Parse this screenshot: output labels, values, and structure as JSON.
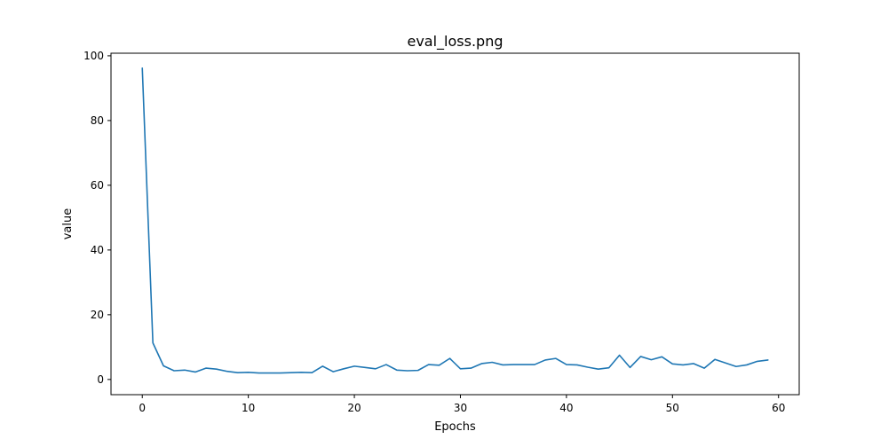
{
  "chart_data": {
    "type": "line",
    "title": "eval_loss.png",
    "xlabel": "Epochs",
    "ylabel": "value",
    "xlim": [
      -2.95,
      61.95
    ],
    "ylim": [
      -4.7,
      100.8
    ],
    "xticks": [
      0,
      10,
      20,
      30,
      40,
      50,
      60
    ],
    "yticks": [
      0,
      20,
      40,
      60,
      80,
      100
    ],
    "grid": false,
    "line_color": "#1f77b4",
    "series": [
      {
        "x": [
          0,
          1,
          2,
          3,
          4,
          5,
          6,
          7,
          8,
          9,
          10,
          11,
          12,
          13,
          14,
          15,
          16,
          17,
          18,
          19,
          20,
          21,
          22,
          23,
          24,
          25,
          26,
          27,
          28,
          29,
          30,
          31,
          32,
          33,
          34,
          35,
          36,
          37,
          38,
          39,
          40,
          41,
          42,
          43,
          44,
          45,
          46,
          47,
          48,
          49,
          50,
          51,
          52,
          53,
          54,
          55,
          56,
          57,
          58,
          59
        ],
        "values": [
          96.2,
          11.3,
          4.2,
          2.7,
          2.9,
          2.3,
          3.5,
          3.2,
          2.5,
          2.1,
          2.2,
          2.0,
          2.0,
          2.0,
          2.1,
          2.2,
          2.1,
          4.1,
          2.4,
          3.3,
          4.1,
          3.7,
          3.3,
          4.6,
          2.9,
          2.7,
          2.8,
          4.6,
          4.4,
          6.5,
          3.3,
          3.5,
          4.9,
          5.3,
          4.5,
          4.6,
          4.6,
          4.6,
          6.0,
          6.5,
          4.6,
          4.5,
          3.8,
          3.2,
          3.6,
          7.5,
          3.7,
          7.1,
          6.1,
          7.0,
          4.8,
          4.5,
          4.9,
          3.5,
          6.2,
          5.1,
          4.0,
          4.5,
          5.6,
          6.0
        ]
      }
    ]
  }
}
